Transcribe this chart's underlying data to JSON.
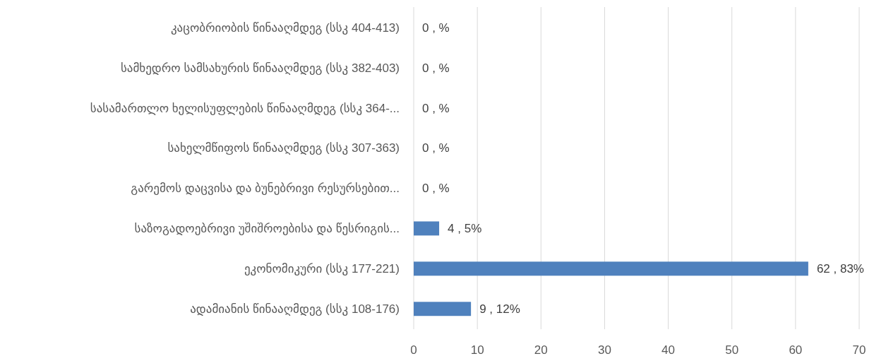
{
  "chart_data": {
    "type": "bar",
    "orientation": "horizontal",
    "categories": [
      "კაცობრიობის წინააღმდეგ (სსკ 404-413)",
      "სამხედრო სამსახურის წინააღმდეგ (სსკ 382-403)",
      "სასამართლო ხელისუფლების წინააღმდეგ (სსკ 364-...",
      "სახელმწიფოს წინააღმდეგ (სსკ 307-363)",
      "გარემოს დაცვისა და ბუნებრივი რესურსებით...",
      "საზოგადოებრივი უშიშროებისა და წესრიგის...",
      "ეკონომიკური (სსკ 177-221)",
      "ადამიანის წინააღმდეგ (სსკ 108-176)"
    ],
    "values": [
      0,
      0,
      0,
      0,
      0,
      4,
      62,
      9
    ],
    "value_labels": [
      "0 , %",
      "0 , %",
      "0 , %",
      "0 , %",
      "0 , %",
      "4 , 5%",
      "62 , 83%",
      "9 , 12%"
    ],
    "color": "#4f81bd",
    "xlim": [
      0,
      70
    ],
    "xticks": [
      0,
      10,
      20,
      30,
      40,
      50,
      60,
      70
    ],
    "grid": "x"
  }
}
